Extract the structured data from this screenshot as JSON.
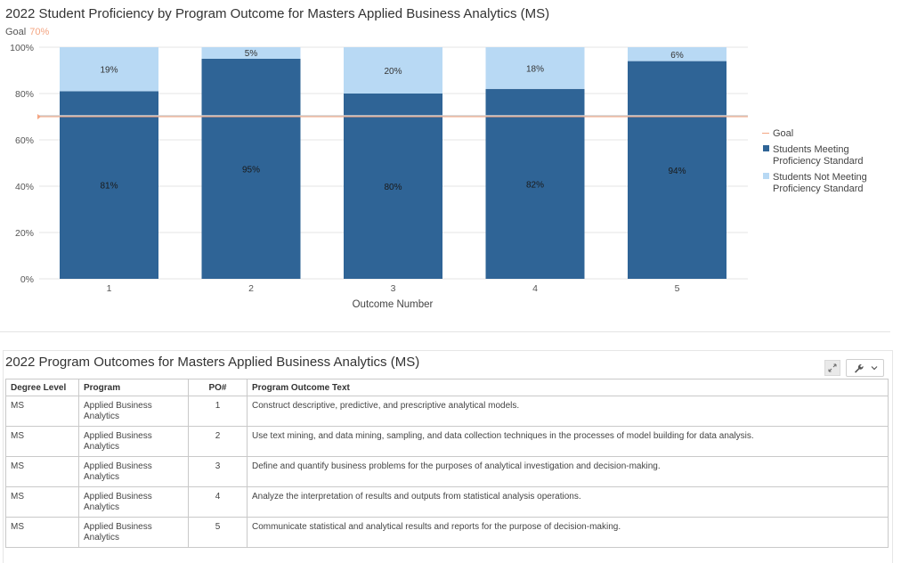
{
  "chart": {
    "title": "2022 Student Proficiency by Program Outcome for Masters Applied Business Analytics (MS)",
    "goal_label": "Goal",
    "goal_value_label": "70%"
  },
  "chart_data": {
    "type": "bar",
    "stacked": true,
    "title": "2022 Student Proficiency by Program Outcome for Masters Applied Business Analytics (MS)",
    "xlabel": "Outcome Number",
    "ylabel": "",
    "categories": [
      "1",
      "2",
      "3",
      "4",
      "5"
    ],
    "ylim": [
      0,
      100
    ],
    "yticks": [
      "0%",
      "20%",
      "40%",
      "60%",
      "80%",
      "100%"
    ],
    "series": [
      {
        "name": "Students Meeting Proficiency Standard",
        "values": [
          81,
          95,
          80,
          82,
          94
        ],
        "labels": [
          "81%",
          "95%",
          "80%",
          "82%",
          "94%"
        ],
        "color": "#2f6496"
      },
      {
        "name": "Students Not Meeting Proficiency Standard",
        "values": [
          19,
          5,
          20,
          18,
          6
        ],
        "labels": [
          "19%",
          "5%",
          "20%",
          "18%",
          "6%"
        ],
        "color": "#b8d9f4"
      }
    ],
    "goal": {
      "name": "Goal",
      "value": 70,
      "color": "#f4a582"
    },
    "legend": {
      "placement": "right",
      "entries": [
        {
          "lines": [
            "Goal"
          ],
          "kind": "line",
          "color": "#f4a582"
        },
        {
          "lines": [
            "Students Meeting",
            "Proficiency Standard"
          ],
          "kind": "box",
          "color": "#2f6496"
        },
        {
          "lines": [
            "Students Not Meeting",
            "Proficiency Standard"
          ],
          "kind": "box",
          "color": "#b8d9f4"
        }
      ]
    },
    "grid": true
  },
  "table": {
    "title": "2022 Program Outcomes for Masters Applied Business Analytics (MS)",
    "headers": {
      "level": "Degree Level",
      "program": "Program",
      "po": "PO#",
      "text": "Program Outcome Text"
    },
    "rows": [
      {
        "level": "MS",
        "program": "Applied Business Analytics",
        "po": "1",
        "text": "Construct descriptive, predictive, and prescriptive analytical models."
      },
      {
        "level": "MS",
        "program": "Applied Business Analytics",
        "po": "2",
        "text": "Use text mining, and data mining, sampling, and data collection techniques in the processes of model building for data analysis."
      },
      {
        "level": "MS",
        "program": "Applied Business Analytics",
        "po": "3",
        "text": "Define and quantify business problems for the purposes of analytical investigation and decision-making."
      },
      {
        "level": "MS",
        "program": "Applied Business Analytics",
        "po": "4",
        "text": "Analyze the interpretation of results and outputs from statistical analysis operations."
      },
      {
        "level": "MS",
        "program": "Applied Business Analytics",
        "po": "5",
        "text": "Communicate statistical and analytical results and reports for the purpose of decision-making."
      }
    ]
  },
  "tools": {
    "expand_icon": "expand-icon",
    "wrench_icon": "wrench-icon",
    "chevron_icon": "chevron-down-icon"
  }
}
